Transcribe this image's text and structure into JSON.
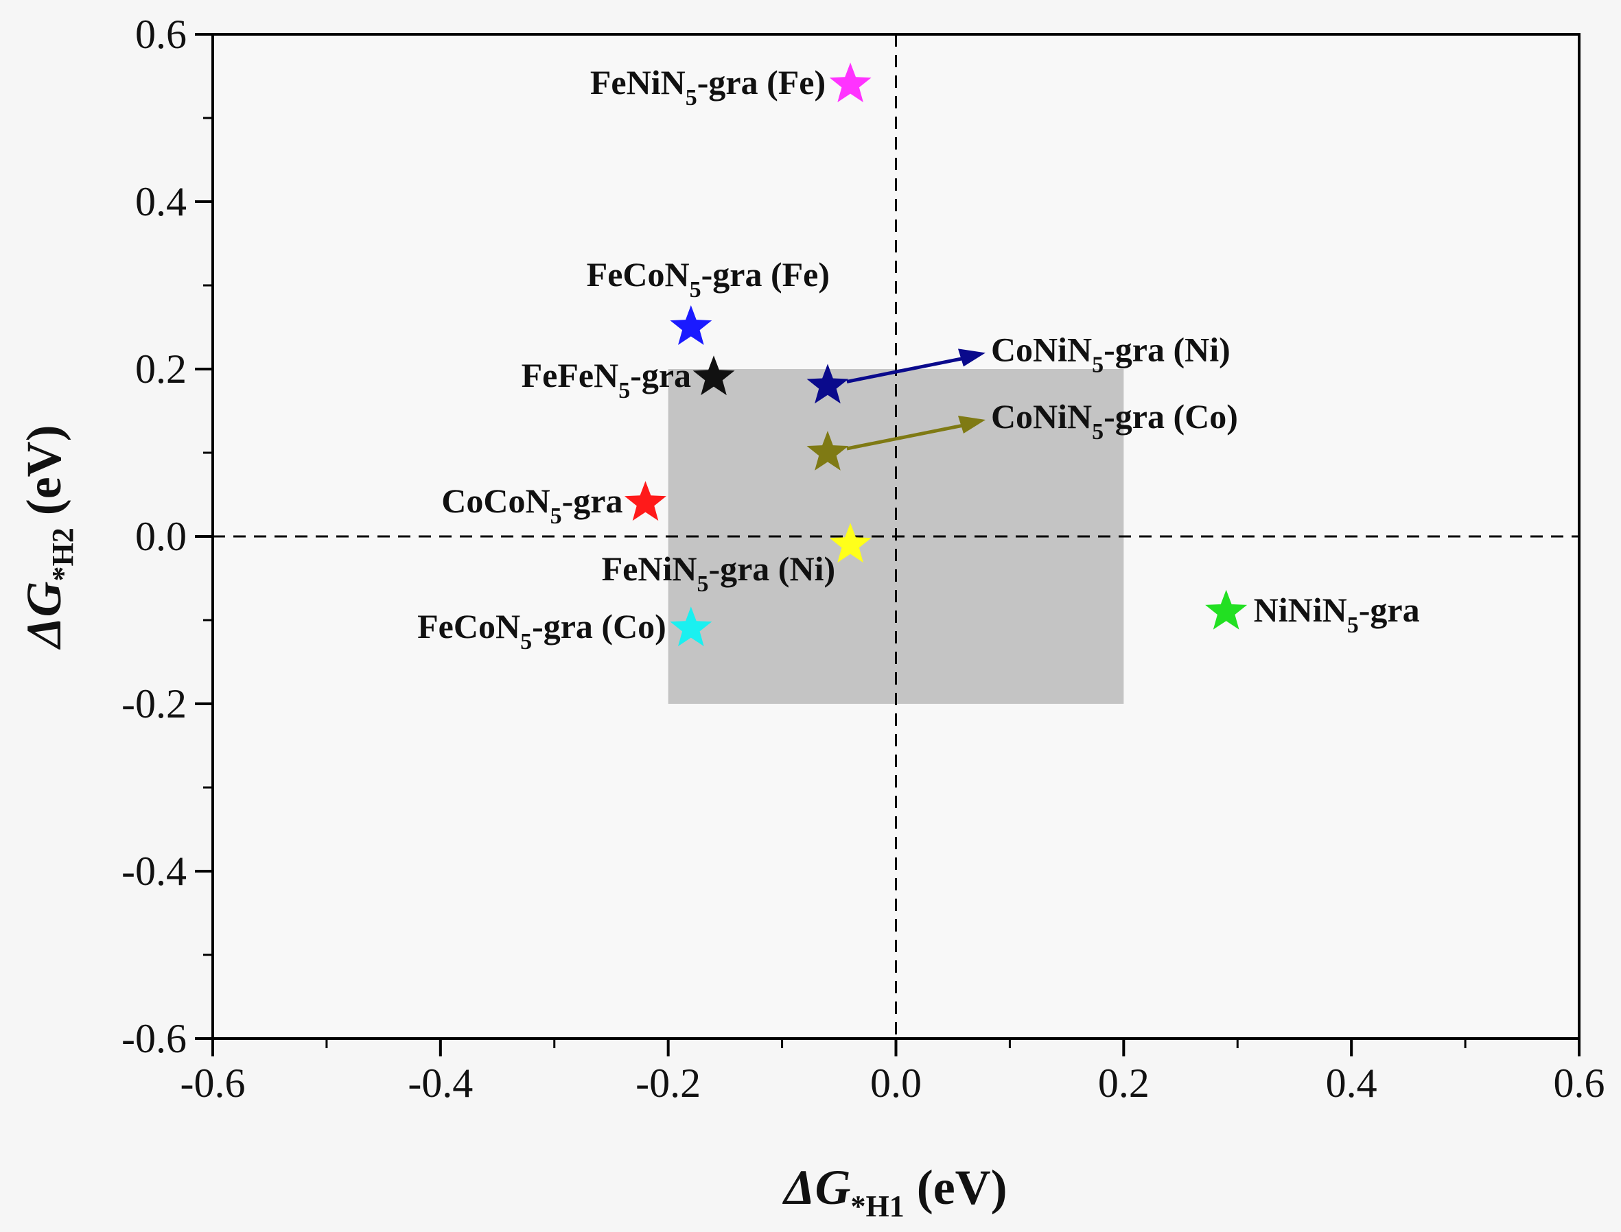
{
  "chart_data": {
    "type": "scatter",
    "xlabel": {
      "delta": "ΔG",
      "sub": "*H1",
      "unit": " (eV)"
    },
    "ylabel": {
      "delta": "ΔG",
      "sub": "*H2",
      "unit": " (eV)"
    },
    "xlim": [
      -0.6,
      0.6
    ],
    "ylim": [
      -0.6,
      0.6
    ],
    "xticks": [
      "-0.6",
      "-0.4",
      "-0.2",
      "0.0",
      "0.2",
      "0.4",
      "0.6"
    ],
    "yticks": [
      "0.6",
      "0.4",
      "0.2",
      "0.0",
      "-0.2",
      "-0.4",
      "-0.6"
    ],
    "grid": false,
    "reference_lines": {
      "x": 0,
      "y": 0,
      "style": "dashed"
    },
    "shaded_region": {
      "x": [
        -0.2,
        0.2
      ],
      "y": [
        -0.2,
        0.2
      ],
      "color": "#c4c4c4"
    },
    "marker": "star",
    "points": [
      {
        "label": {
          "pre": "FeNiN",
          "sub": "5",
          "post": "-gra (Fe)"
        },
        "x": -0.04,
        "y": 0.54,
        "color": "#ff33ff"
      },
      {
        "label": {
          "pre": "FeCoN",
          "sub": "5",
          "post": "-gra (Fe)"
        },
        "x": -0.18,
        "y": 0.25,
        "color": "#1a1aff"
      },
      {
        "label": {
          "pre": "FeFeN",
          "sub": "5",
          "post": "-gra"
        },
        "x": -0.16,
        "y": 0.19,
        "color": "#111111"
      },
      {
        "label": {
          "pre": "CoNiN",
          "sub": "5",
          "post": "-gra (Ni)"
        },
        "x": -0.06,
        "y": 0.18,
        "color": "#0a0a8c"
      },
      {
        "label": {
          "pre": "CoNiN",
          "sub": "5",
          "post": "-gra (Co)"
        },
        "x": -0.06,
        "y": 0.1,
        "color": "#7f7a14"
      },
      {
        "label": {
          "pre": "CoCoN",
          "sub": "5",
          "post": "-gra"
        },
        "x": -0.22,
        "y": 0.04,
        "color": "#ff1a1a"
      },
      {
        "label": {
          "pre": "FeNiN",
          "sub": "5",
          "post": "-gra (Ni)"
        },
        "x": -0.04,
        "y": -0.01,
        "color": "#ffff1a"
      },
      {
        "label": {
          "pre": "FeCoN",
          "sub": "5",
          "post": "-gra (Co)"
        },
        "x": -0.18,
        "y": -0.11,
        "color": "#1af0f0"
      },
      {
        "label": {
          "pre": "NiNiN",
          "sub": "5",
          "post": "-gra"
        },
        "x": 0.29,
        "y": -0.09,
        "color": "#22e022"
      }
    ]
  }
}
